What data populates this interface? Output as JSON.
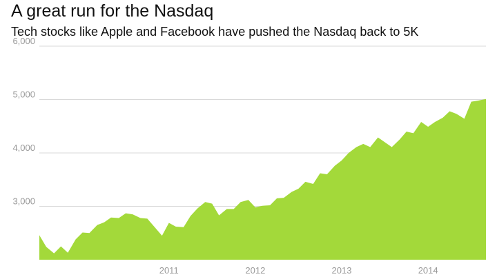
{
  "chart_data": {
    "type": "area",
    "title": "A great run for the Nasdaq",
    "subtitle": "Tech stocks like Apple and Facebook have pushed the Nasdaq back to 5K",
    "xlabel": "",
    "ylabel": "",
    "ylim": [
      2000,
      6000
    ],
    "yticks": [
      6000,
      5000,
      4000,
      3000
    ],
    "ytick_labels": [
      "6,000",
      "5,000",
      "4,000",
      "3,000"
    ],
    "xlim": [
      2010.0,
      2015.17
    ],
    "xticks": [
      2011,
      2012,
      2013,
      2014
    ],
    "xtick_labels": [
      "2011",
      "2012",
      "2013",
      "2014"
    ],
    "grid": true,
    "fill_color": "#a3d93a",
    "x": [
      2010.0,
      2010.08,
      2010.17,
      2010.25,
      2010.33,
      2010.42,
      2010.5,
      2010.58,
      2010.67,
      2010.75,
      2010.83,
      2010.92,
      2011.0,
      2011.08,
      2011.17,
      2011.25,
      2011.33,
      2011.42,
      2011.5,
      2011.58,
      2011.67,
      2011.75,
      2011.83,
      2011.92,
      2012.0,
      2012.08,
      2012.17,
      2012.25,
      2012.33,
      2012.42,
      2012.5,
      2012.58,
      2012.67,
      2012.75,
      2012.83,
      2012.92,
      2013.0,
      2013.08,
      2013.17,
      2013.25,
      2013.33,
      2013.42,
      2013.5,
      2013.58,
      2013.67,
      2013.75,
      2013.83,
      2013.92,
      2014.0,
      2014.08,
      2014.17,
      2014.25,
      2014.33,
      2014.42,
      2014.5,
      2014.58,
      2014.67,
      2014.75,
      2014.83,
      2014.92,
      2015.0,
      2015.08,
      2015.17
    ],
    "values": [
      2460,
      2240,
      2120,
      2250,
      2130,
      2380,
      2510,
      2500,
      2650,
      2700,
      2790,
      2780,
      2870,
      2850,
      2780,
      2770,
      2620,
      2450,
      2690,
      2620,
      2610,
      2820,
      2960,
      3080,
      3050,
      2830,
      2950,
      2950,
      3080,
      3120,
      2980,
      3010,
      3020,
      3150,
      3160,
      3270,
      3330,
      3460,
      3420,
      3620,
      3600,
      3760,
      3860,
      4000,
      4110,
      4170,
      4110,
      4290,
      4200,
      4110,
      4250,
      4400,
      4370,
      4580,
      4490,
      4580,
      4660,
      4780,
      4730,
      4640,
      4960,
      4980,
      5010
    ]
  }
}
